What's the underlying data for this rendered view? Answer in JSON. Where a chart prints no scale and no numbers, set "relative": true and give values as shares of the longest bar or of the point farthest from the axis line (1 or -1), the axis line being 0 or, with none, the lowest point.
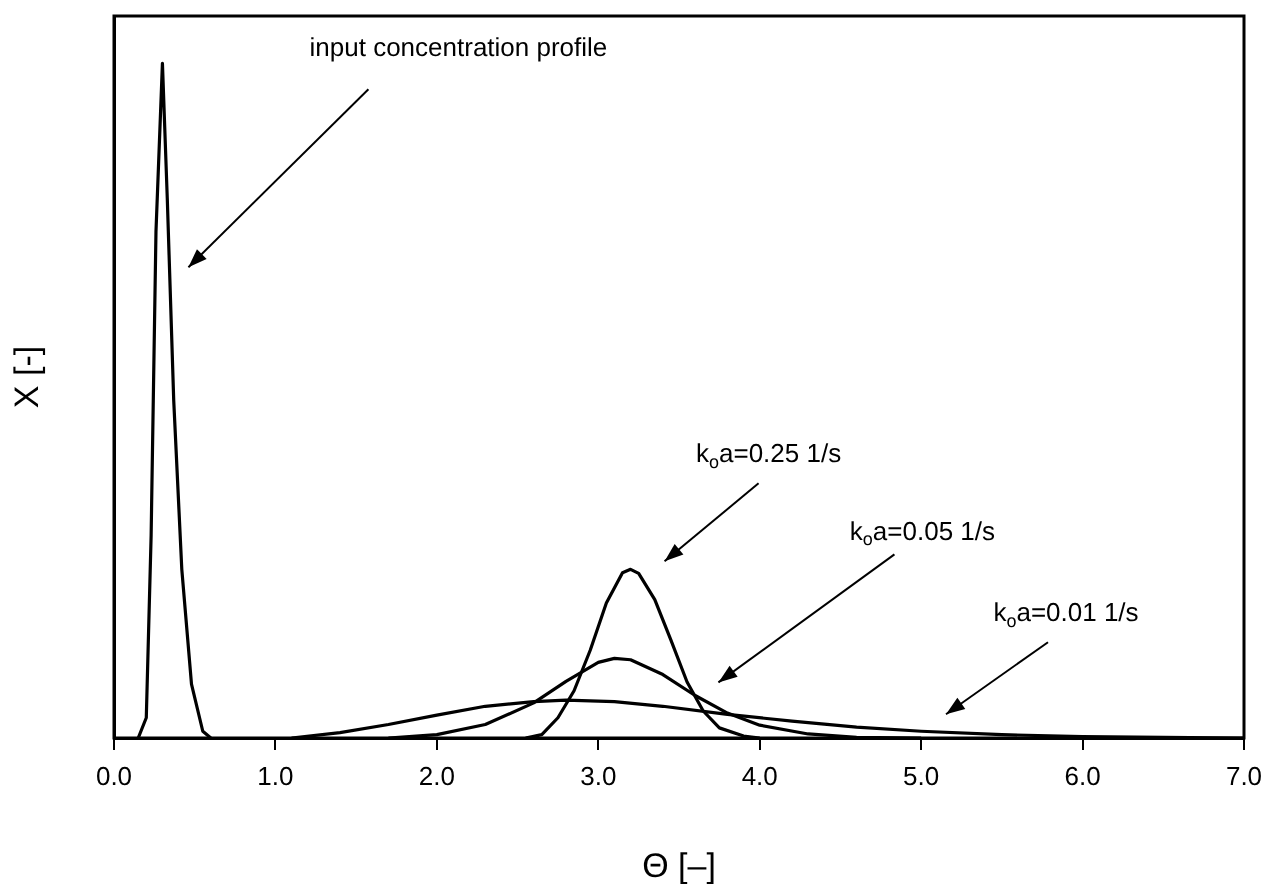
{
  "chart_data": {
    "type": "line",
    "xlabel": "Θ [–]",
    "ylabel": "X [-]",
    "relative": true,
    "xlim": [
      0,
      7
    ],
    "xticks": [
      {
        "value": 0,
        "label": "0.0"
      },
      {
        "value": 1,
        "label": "1.0"
      },
      {
        "value": 2,
        "label": "2.0"
      },
      {
        "value": 3,
        "label": "3.0"
      },
      {
        "value": 4,
        "label": "4.0"
      },
      {
        "value": 5,
        "label": "5.0"
      },
      {
        "value": 6,
        "label": "6.0"
      },
      {
        "value": 7,
        "label": "7.0"
      }
    ],
    "grid": false,
    "legend": false,
    "marker": "none",
    "line_style": "solid",
    "series": [
      {
        "name": "input concentration profile",
        "color": "#000000",
        "x": [
          0.15,
          0.2,
          0.23,
          0.26,
          0.3,
          0.33,
          0.37,
          0.42,
          0.48,
          0.55,
          0.6
        ],
        "values": [
          0,
          0.03,
          0.3,
          0.75,
          1,
          0.8,
          0.5,
          0.25,
          0.08,
          0.01,
          0
        ]
      },
      {
        "name": "k$_{o}$a=0.25 1/s",
        "color": "#000000",
        "x": [
          2.55,
          2.65,
          2.75,
          2.85,
          2.95,
          3.05,
          3.15,
          3.2,
          3.25,
          3.35,
          3.45,
          3.55,
          3.65,
          3.75,
          3.9,
          4.0
        ],
        "values": [
          0,
          0.005,
          0.03,
          0.07,
          0.13,
          0.2,
          0.245,
          0.25,
          0.244,
          0.205,
          0.145,
          0.083,
          0.04,
          0.015,
          0.003,
          0
        ]
      },
      {
        "name": "k$_{o}$a=0.05 1/s",
        "color": "#000000",
        "x": [
          1.7,
          2.0,
          2.3,
          2.6,
          2.8,
          3.0,
          3.1,
          3.2,
          3.4,
          3.6,
          3.8,
          4.0,
          4.3,
          4.6,
          5.0
        ],
        "values": [
          0,
          0.005,
          0.02,
          0.052,
          0.084,
          0.112,
          0.118,
          0.116,
          0.094,
          0.063,
          0.037,
          0.019,
          0.006,
          0.001,
          0
        ]
      },
      {
        "name": "k$_{o}$a=0.01 1/s",
        "color": "#000000",
        "x": [
          1.1,
          1.4,
          1.7,
          2.0,
          2.3,
          2.6,
          2.8,
          3.1,
          3.4,
          3.8,
          4.2,
          4.6,
          5.0,
          5.5,
          6.0,
          6.5,
          7.0
        ],
        "values": [
          0,
          0.008,
          0.02,
          0.034,
          0.047,
          0.054,
          0.056,
          0.054,
          0.047,
          0.035,
          0.025,
          0.016,
          0.01,
          0.005,
          0.002,
          0.001,
          0
        ]
      }
    ]
  }
}
